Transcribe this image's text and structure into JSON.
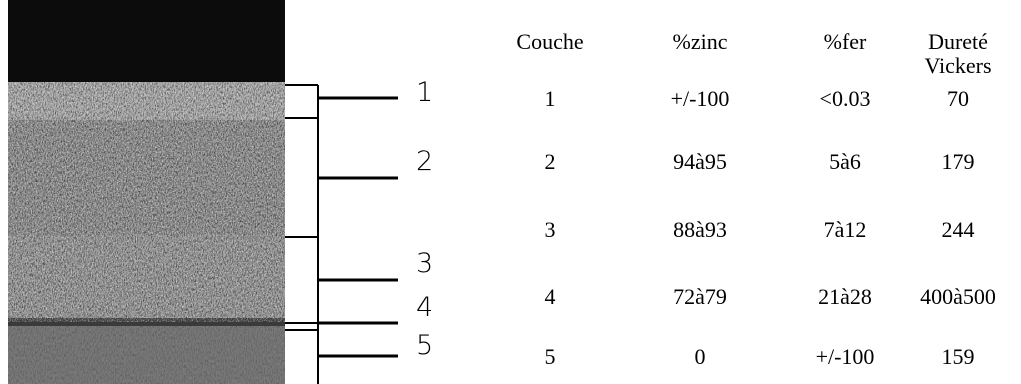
{
  "layers": [
    {
      "label": "1"
    },
    {
      "label": "2"
    },
    {
      "label": "3"
    },
    {
      "label": "4"
    },
    {
      "label": "5"
    }
  ],
  "table": {
    "header": [
      "Couche",
      "%zinc",
      "%fer",
      "Dureté Vickers"
    ],
    "rows": [
      [
        "1",
        "+/-100",
        "<0.03",
        "70"
      ],
      [
        "2",
        "94à95",
        "5à6",
        "179"
      ],
      [
        "3",
        "88à93",
        "7à12",
        "244"
      ],
      [
        "4",
        "72à79",
        "21à28",
        "400à500"
      ],
      [
        "5",
        "0",
        "+/-100",
        "159"
      ]
    ]
  }
}
